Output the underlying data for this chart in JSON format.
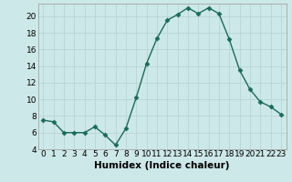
{
  "x": [
    0,
    1,
    2,
    3,
    4,
    5,
    6,
    7,
    8,
    9,
    10,
    11,
    12,
    13,
    14,
    15,
    16,
    17,
    18,
    19,
    20,
    21,
    22,
    23
  ],
  "y": [
    7.5,
    7.3,
    6.0,
    6.0,
    6.0,
    6.7,
    5.7,
    4.5,
    6.5,
    10.2,
    14.3,
    17.3,
    19.5,
    20.2,
    21.0,
    20.3,
    21.0,
    20.3,
    17.2,
    13.5,
    11.2,
    9.7,
    9.1,
    8.2
  ],
  "line_color": "#1a6b5a",
  "marker": "D",
  "marker_size": 2.5,
  "bg_color": "#cde8e8",
  "grid_color": "#b8d4d4",
  "xlabel": "Humidex (Indice chaleur)",
  "ylim": [
    4,
    21.5
  ],
  "xlim": [
    -0.5,
    23.5
  ],
  "yticks": [
    4,
    6,
    8,
    10,
    12,
    14,
    16,
    18,
    20
  ],
  "xticks": [
    0,
    1,
    2,
    3,
    4,
    5,
    6,
    7,
    8,
    9,
    10,
    11,
    12,
    13,
    14,
    15,
    16,
    17,
    18,
    19,
    20,
    21,
    22,
    23
  ],
  "xlabel_fontsize": 7.5,
  "tick_fontsize": 6.5
}
